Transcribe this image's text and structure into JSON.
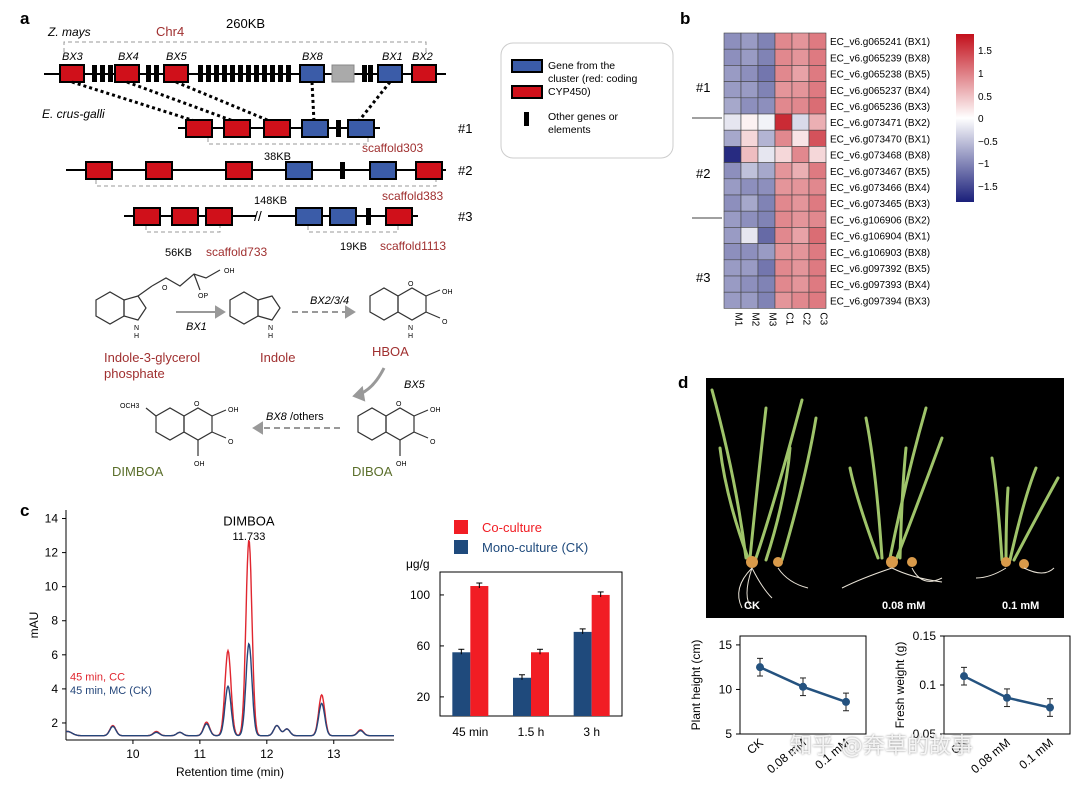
{
  "panel_a": {
    "letter": "a",
    "zmays": "Z. mays",
    "chr": "Chr4",
    "size": "260KB",
    "genes": [
      "BX3",
      "BX4",
      "BX5",
      "BX8",
      "BX1",
      "BX2"
    ],
    "ecrus": "E. crus-galli",
    "rows": [
      {
        "id": "#1",
        "scaffold": "scaffold303",
        "kb": "38KB"
      },
      {
        "id": "#2",
        "scaffold": "scaffold383",
        "kb": "148KB"
      },
      {
        "id": "#3",
        "scaffold_left": "scaffold733",
        "kb_left": "56KB",
        "scaffold_right": "scaffold1113",
        "kb_right": "19KB"
      }
    ],
    "legend": {
      "blue": "Gene from the cluster (red: coding CYP450)",
      "blue_l1": "Gene from the",
      "blue_l2": "cluster (red: coding",
      "blue_l3": "CYP450)",
      "other_l1": "Other genes or",
      "other_l2": "elements"
    },
    "pathway": {
      "igp_l1": "Indole-3-glycerol",
      "igp_l2": "phosphate",
      "indole": "Indole",
      "hboa": "HBOA",
      "diboa": "DIBOA",
      "dimboa": "DIMBOA",
      "bx1": "BX1",
      "bx234": "BX2/3/4",
      "bx5": "BX5",
      "bx8_a": "BX8",
      "bx8_b": "/others",
      "oh": "OH",
      "op": "OP",
      "o": "O",
      "n": "N",
      "h": "H",
      "och3": "OCH3"
    }
  },
  "panel_b": {
    "letter": "b",
    "groups": [
      "#1",
      "#2",
      "#3"
    ],
    "columns": [
      "M1",
      "M2",
      "M3",
      "C1",
      "C2",
      "C3"
    ],
    "rows": [
      "EC_v6.g065241 (BX1)",
      "EC_v6.g065239 (BX8)",
      "EC_v6.g065238 (BX5)",
      "EC_v6.g065237 (BX4)",
      "EC_v6.g065236 (BX3)",
      "EC_v6.g073471 (BX2)",
      "EC_v6.g073470 (BX1)",
      "EC_v6.g073468 (BX8)",
      "EC_v6.g073467 (BX5)",
      "EC_v6.g073466 (BX4)",
      "EC_v6.g073465 (BX3)",
      "EC_v6.g106906 (BX2)",
      "EC_v6.g106904 (BX1)",
      "EC_v6.g106903 (BX8)",
      "EC_v6.g097392 (BX5)",
      "EC_v6.g097393 (BX4)",
      "EC_v6.g097394 (BX3)"
    ],
    "values": [
      [
        -0.9,
        -0.8,
        -1.0,
        0.9,
        0.8,
        1.0
      ],
      [
        -0.9,
        -0.8,
        -1.0,
        0.9,
        0.8,
        1.0
      ],
      [
        -0.8,
        -0.9,
        -1.1,
        0.9,
        0.7,
        1.0
      ],
      [
        -0.8,
        -0.8,
        -1.0,
        0.8,
        0.8,
        1.0
      ],
      [
        -0.7,
        -0.9,
        -0.9,
        0.9,
        0.9,
        1.1
      ],
      [
        -0.2,
        0.1,
        -0.1,
        1.6,
        -0.3,
        0.6
      ],
      [
        -0.7,
        0.3,
        -0.6,
        0.9,
        0.2,
        1.3
      ],
      [
        -1.7,
        0.5,
        -0.2,
        0.3,
        0.9,
        0.3
      ],
      [
        -0.9,
        -0.5,
        -0.7,
        0.8,
        0.6,
        1.0
      ],
      [
        -0.8,
        -0.9,
        -0.9,
        0.8,
        0.8,
        0.9
      ],
      [
        -0.9,
        -0.7,
        -1.0,
        0.9,
        0.8,
        1.0
      ],
      [
        -0.8,
        -0.9,
        -1.0,
        0.9,
        0.8,
        0.9
      ],
      [
        -0.8,
        -0.2,
        -1.2,
        0.9,
        0.7,
        1.1
      ],
      [
        -0.9,
        -0.9,
        -0.8,
        0.8,
        0.8,
        1.0
      ],
      [
        -0.8,
        -0.8,
        -1.1,
        0.9,
        0.8,
        1.0
      ],
      [
        -0.8,
        -0.9,
        -1.0,
        0.9,
        0.8,
        1.0
      ],
      [
        -0.8,
        -0.8,
        -1.0,
        0.8,
        0.9,
        1.0
      ]
    ],
    "scale_ticks": [
      "1.5",
      "1",
      "0.5",
      "0",
      "−0.5",
      "−1",
      "−1.5"
    ]
  },
  "panel_c": {
    "letter": "c",
    "chart_data": [
      {
        "type": "line",
        "xlabel": "Retention time (min)",
        "ylabel": "mAU",
        "xlim": [
          9.0,
          13.9
        ],
        "ylim": [
          1,
          14.5
        ],
        "xticks": [
          "10",
          "11",
          "12",
          "13"
        ],
        "yticks": [
          "2",
          "4",
          "6",
          "8",
          "10",
          "12",
          "14"
        ],
        "peak_label": "DIMBOA",
        "peak_value": "11.733",
        "series": [
          {
            "name": "45 min, CC",
            "color": "#e0262f"
          },
          {
            "name": "45 min, MC (CK)",
            "color": "#24467a"
          }
        ]
      },
      {
        "type": "bar",
        "ylabel": "μg/g",
        "categories": [
          "45 min",
          "1.5 h",
          "3 h"
        ],
        "yticks": [
          "20",
          "60",
          "100"
        ],
        "ylim": [
          5,
          118
        ],
        "series": [
          {
            "name": "Mono-culture (CK)",
            "color": "#1f4a7c",
            "values": [
              55,
              35,
              71
            ]
          },
          {
            "name": "Co-culture",
            "color": "#f11d24",
            "values": [
              107,
              55,
              100
            ]
          }
        ]
      }
    ]
  },
  "panel_d": {
    "letter": "d",
    "photo_labels": [
      "CK",
      "0.08 mM",
      "0.1 mM"
    ],
    "chart_data": [
      {
        "type": "line",
        "ylabel": "Plant height (cm)",
        "categories": [
          "CK",
          "0.08 mM",
          "0.1 mM"
        ],
        "values": [
          12.5,
          10.3,
          8.6
        ],
        "yticks": [
          "5",
          "10",
          "15"
        ],
        "ylim": [
          5,
          16
        ],
        "color": "#24527f"
      },
      {
        "type": "line",
        "ylabel": "Fresh weight (g)",
        "categories": [
          "CK",
          "0.08 mM",
          "0.1 mM"
        ],
        "values": [
          0.109,
          0.087,
          0.077
        ],
        "yticks": [
          "0.05",
          "0.1",
          "0.15"
        ],
        "ylim": [
          0.05,
          0.15
        ],
        "color": "#24527f"
      }
    ],
    "watermark": "知乎 @奔草的故事"
  }
}
